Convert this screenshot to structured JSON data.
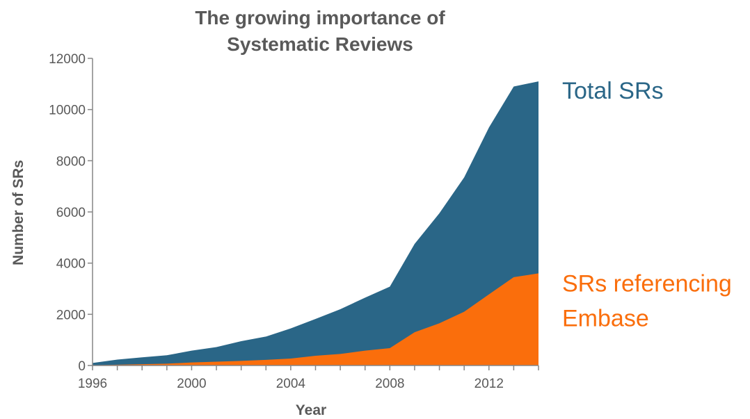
{
  "chart_data": {
    "type": "area",
    "stacked": false,
    "title": [
      "The growing importance of",
      "Systematic Reviews"
    ],
    "xlabel": "Year",
    "ylabel": "Number of SRs",
    "xlim": [
      1996,
      2014
    ],
    "ylim": [
      0,
      12000
    ],
    "xticks": [
      1996,
      2000,
      2004,
      2008,
      2012
    ],
    "yticks": [
      0,
      2000,
      4000,
      6000,
      8000,
      10000,
      12000
    ],
    "grid": false,
    "x": [
      1996,
      1997,
      1998,
      1999,
      2000,
      2001,
      2002,
      2003,
      2004,
      2005,
      2006,
      2007,
      2008,
      2009,
      2010,
      2011,
      2012,
      2013,
      2014
    ],
    "series": [
      {
        "name": "Total SRs",
        "label_lines": [
          "Total SRs"
        ],
        "color": "#2a6687",
        "values": [
          100,
          230,
          320,
          400,
          580,
          720,
          950,
          1130,
          1450,
          1820,
          2200,
          2650,
          3080,
          4750,
          5950,
          7350,
          9300,
          10900,
          11100
        ]
      },
      {
        "name": "SRs referencing Embase",
        "label_lines": [
          "SRs referencing",
          "Embase"
        ],
        "color": "#fa6e0c",
        "values": [
          10,
          30,
          50,
          70,
          120,
          150,
          180,
          220,
          270,
          380,
          450,
          580,
          680,
          1300,
          1650,
          2100,
          2780,
          3450,
          3600
        ]
      }
    ]
  }
}
